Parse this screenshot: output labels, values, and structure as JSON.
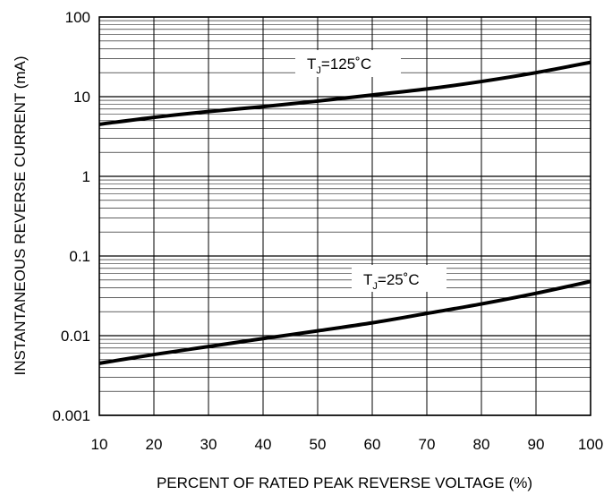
{
  "chart_data": {
    "type": "line",
    "xlabel": "PERCENT OF RATED PEAK REVERSE VOLTAGE (%)",
    "ylabel": "INSTANTANEOUS REVERSE CURRENT (mA)",
    "xlim": [
      10,
      100
    ],
    "ylim": [
      0.001,
      100
    ],
    "yscale": "log",
    "grid": true,
    "x_ticks": [
      10,
      20,
      30,
      40,
      50,
      60,
      70,
      80,
      90,
      100
    ],
    "x_tick_labels": [
      "10",
      "20",
      "30",
      "40",
      "50",
      "60",
      "70",
      "80",
      "90",
      "100"
    ],
    "y_ticks": [
      0.001,
      0.01,
      0.1,
      1,
      10,
      100
    ],
    "y_tick_labels": [
      "0.001",
      "0.01",
      "0.1",
      "1",
      "10",
      "100"
    ],
    "series": [
      {
        "x": [
          10,
          20,
          30,
          40,
          50,
          60,
          70,
          80,
          90,
          100
        ],
        "y": [
          4.5,
          5.5,
          6.5,
          7.5,
          8.8,
          10.5,
          12.5,
          15.5,
          20,
          27
        ],
        "annotation": {
          "main": "T",
          "sub": "J",
          "rest": "=125˚C"
        }
      },
      {
        "x": [
          10,
          20,
          30,
          40,
          50,
          60,
          70,
          80,
          90,
          100
        ],
        "y": [
          0.0045,
          0.0058,
          0.0073,
          0.0092,
          0.0115,
          0.0145,
          0.019,
          0.025,
          0.034,
          0.048
        ],
        "annotation": {
          "main": "T",
          "sub": "J",
          "rest": "=25˚C"
        }
      }
    ]
  }
}
